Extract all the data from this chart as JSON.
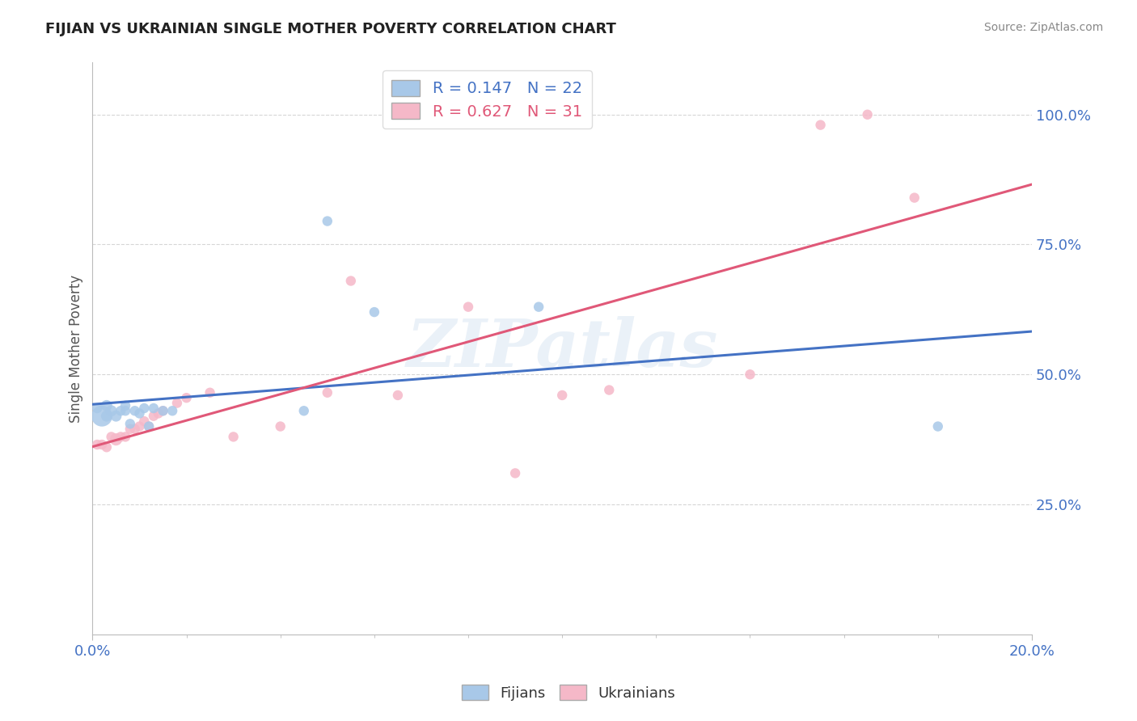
{
  "title": "FIJIAN VS UKRAINIAN SINGLE MOTHER POVERTY CORRELATION CHART",
  "source": "Source: ZipAtlas.com",
  "xlabel_label": "Fijians",
  "ylabel_label": "Ukrainians",
  "ylabel": "Single Mother Poverty",
  "fijian_r": 0.147,
  "fijian_n": 22,
  "ukrainian_r": 0.627,
  "ukrainian_n": 31,
  "fijian_color": "#a8c8e8",
  "ukrainian_color": "#f5b8c8",
  "fijian_line_color": "#4472c4",
  "ukrainian_line_color": "#e05878",
  "background_color": "#ffffff",
  "xlim": [
    0.0,
    0.2
  ],
  "ylim": [
    0.0,
    1.1
  ],
  "yticks": [
    0.25,
    0.5,
    0.75,
    1.0
  ],
  "ytick_labels": [
    "25.0%",
    "50.0%",
    "75.0%",
    "100.0%"
  ],
  "xtick_labels": [
    "0.0%",
    "20.0%"
  ],
  "watermark": "ZIPatlas",
  "fijian_x": [
    0.001,
    0.002,
    0.003,
    0.003,
    0.004,
    0.005,
    0.006,
    0.007,
    0.007,
    0.008,
    0.009,
    0.01,
    0.011,
    0.012,
    0.013,
    0.015,
    0.017,
    0.045,
    0.05,
    0.06,
    0.095,
    0.18
  ],
  "fijian_y": [
    0.435,
    0.42,
    0.42,
    0.44,
    0.43,
    0.42,
    0.43,
    0.43,
    0.44,
    0.405,
    0.43,
    0.425,
    0.435,
    0.4,
    0.435,
    0.43,
    0.43,
    0.43,
    0.795,
    0.62,
    0.63,
    0.4
  ],
  "fijian_size": [
    80,
    350,
    100,
    100,
    100,
    100,
    80,
    80,
    80,
    80,
    80,
    80,
    80,
    80,
    80,
    80,
    80,
    80,
    80,
    80,
    80,
    80
  ],
  "ukrainian_x": [
    0.001,
    0.002,
    0.003,
    0.004,
    0.005,
    0.006,
    0.007,
    0.008,
    0.009,
    0.01,
    0.011,
    0.012,
    0.013,
    0.014,
    0.015,
    0.018,
    0.02,
    0.025,
    0.03,
    0.04,
    0.05,
    0.055,
    0.065,
    0.08,
    0.09,
    0.1,
    0.11,
    0.14,
    0.155,
    0.165,
    0.175
  ],
  "ukrainian_y": [
    0.365,
    0.365,
    0.36,
    0.38,
    0.375,
    0.38,
    0.38,
    0.395,
    0.395,
    0.4,
    0.41,
    0.4,
    0.42,
    0.425,
    0.43,
    0.445,
    0.455,
    0.465,
    0.38,
    0.4,
    0.465,
    0.68,
    0.46,
    0.63,
    0.31,
    0.46,
    0.47,
    0.5,
    0.98,
    1.0,
    0.84
  ],
  "ukrainian_size": [
    80,
    80,
    80,
    80,
    120,
    80,
    80,
    80,
    80,
    80,
    80,
    80,
    80,
    80,
    80,
    80,
    80,
    80,
    80,
    80,
    80,
    80,
    80,
    80,
    80,
    80,
    80,
    80,
    80,
    80,
    80
  ]
}
